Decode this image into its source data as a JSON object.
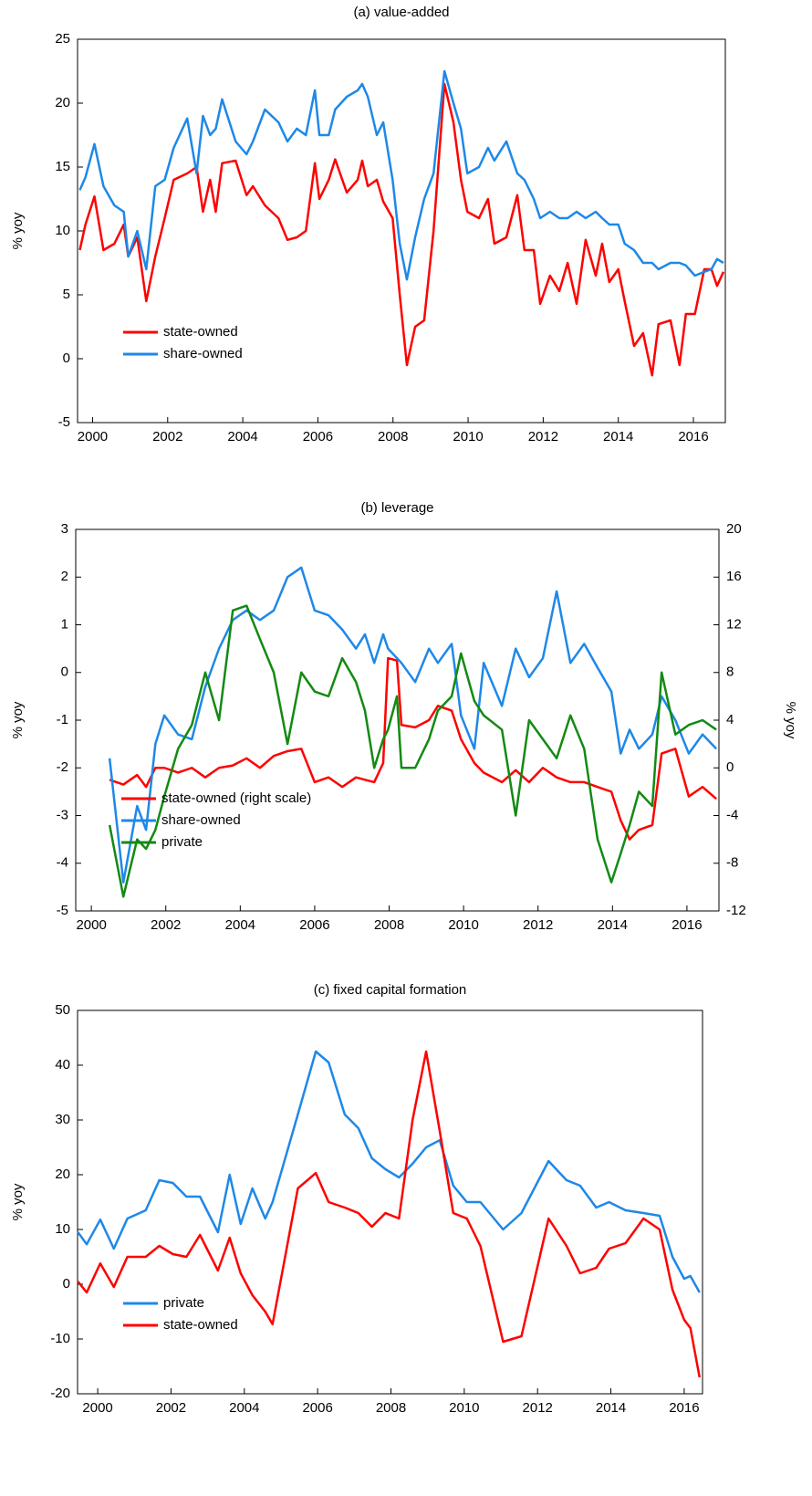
{
  "chart_data": [
    {
      "type": "line",
      "title": "(a) value-added",
      "ylabel": "% yoy",
      "legend": "lower left",
      "xlim": [
        1999.6,
        2016.85
      ],
      "xticks": [
        2000,
        2002,
        2004,
        2006,
        2008,
        2010,
        2012,
        2014,
        2016
      ],
      "ylim": [
        -5,
        25
      ],
      "yticks": [
        -5,
        0,
        5,
        10,
        15,
        20,
        25
      ],
      "x": [
        1999.66,
        1999.81,
        2000.05,
        2000.29,
        2000.58,
        2000.83,
        2000.95,
        2001.19,
        2001.43,
        2001.67,
        2001.92,
        2002.16,
        2002.52,
        2002.77,
        2002.94,
        2003.13,
        2003.28,
        2003.45,
        2003.81,
        2004.1,
        2004.27,
        2004.59,
        2004.95,
        2005.19,
        2005.44,
        2005.68,
        2005.92,
        2006.04,
        2006.29,
        2006.46,
        2006.77,
        2007.06,
        2007.18,
        2007.33,
        2007.57,
        2007.74,
        2007.99,
        2008.18,
        2008.37,
        2008.59,
        2008.83,
        2009.08,
        2009.37,
        2009.61,
        2009.81,
        2009.98,
        2010.29,
        2010.53,
        2010.7,
        2011.02,
        2011.31,
        2011.5,
        2011.75,
        2011.92,
        2012.18,
        2012.43,
        2012.65,
        2012.89,
        2013.13,
        2013.4,
        2013.57,
        2013.76,
        2014.0,
        2014.17,
        2014.42,
        2014.66,
        2014.9,
        2015.07,
        2015.39,
        2015.63,
        2015.8,
        2016.04,
        2016.29,
        2016.48,
        2016.63,
        2016.8
      ],
      "series": [
        {
          "name": "state-owned",
          "color": "#ff0000",
          "values": [
            8.5,
            10.5,
            12.7,
            8.5,
            9,
            10.5,
            8,
            9.5,
            4.5,
            8,
            11,
            14,
            14.5,
            15,
            11.5,
            14,
            11.5,
            15.3,
            15.5,
            12.8,
            13.5,
            12,
            11,
            9.3,
            9.5,
            10,
            15.3,
            12.5,
            14,
            15.6,
            13,
            14,
            15.5,
            13.5,
            14,
            12.3,
            11,
            5,
            -0.5,
            2.5,
            3,
            10,
            21.5,
            18.5,
            14,
            11.5,
            11,
            12.5,
            9,
            9.5,
            12.8,
            8.5,
            8.5,
            4.3,
            6.5,
            5.3,
            7.5,
            4.3,
            9.3,
            6.5,
            9,
            6,
            7,
            4.5,
            1,
            2,
            -1.3,
            2.7,
            3,
            -0.5,
            3.5,
            3.5,
            7,
            7,
            5.7,
            6.8
          ]
        },
        {
          "name": "share-owned",
          "color": "#1e88e8",
          "values": [
            13.2,
            14.2,
            16.8,
            13.5,
            12,
            11.5,
            8,
            10,
            7,
            13.5,
            14,
            16.5,
            18.8,
            14.5,
            19,
            17.5,
            18,
            20.3,
            17,
            16,
            17,
            19.5,
            18.5,
            17,
            18,
            17.5,
            21,
            17.5,
            17.5,
            19.5,
            20.5,
            21,
            21.5,
            20.5,
            17.5,
            18.5,
            14,
            9,
            6.2,
            9.5,
            12.5,
            14.5,
            22.5,
            20,
            18,
            14.5,
            15,
            16.5,
            15.5,
            17,
            14.5,
            14,
            12.5,
            11,
            11.5,
            11,
            11,
            11.5,
            11,
            11.5,
            11,
            10.5,
            10.5,
            9,
            8.5,
            7.5,
            7.5,
            7,
            7.5,
            7.5,
            7.3,
            6.5,
            6.8,
            7,
            7.8,
            7.5
          ]
        }
      ]
    },
    {
      "type": "line",
      "title": "(b) leverage",
      "ylabel": "% yoy",
      "y2label": "% yoy",
      "legend": "lower left",
      "xlim": [
        1999.58,
        2016.86
      ],
      "xticks": [
        2000,
        2002,
        2004,
        2006,
        2008,
        2010,
        2012,
        2014,
        2016
      ],
      "ylim": [
        -5,
        3
      ],
      "yticks": [
        -5,
        -4,
        -3,
        -2,
        -1,
        0,
        1,
        2,
        3
      ],
      "y2lim": [
        -12,
        20
      ],
      "y2ticks": [
        -12,
        -8,
        -4,
        0,
        4,
        8,
        12,
        16,
        20
      ],
      "x": [
        2000.49,
        2000.86,
        2001.23,
        2001.47,
        2001.72,
        2001.96,
        2002.33,
        2002.7,
        2003.06,
        2003.43,
        2003.8,
        2004.17,
        2004.53,
        2004.9,
        2005.27,
        2005.64,
        2006.0,
        2006.37,
        2006.74,
        2007.11,
        2007.35,
        2007.6,
        2007.84,
        2007.97,
        2008.21,
        2008.33,
        2008.7,
        2009.07,
        2009.31,
        2009.68,
        2009.93,
        2010.29,
        2010.54,
        2011.03,
        2011.4,
        2011.76,
        2012.13,
        2012.5,
        2012.87,
        2013.24,
        2013.6,
        2013.97,
        2014.22,
        2014.46,
        2014.71,
        2015.07,
        2015.32,
        2015.69,
        2016.05,
        2016.42,
        2016.79
      ],
      "series": [
        {
          "name": "state-owned (right scale)",
          "color": "#ff0000",
          "axis": "y2",
          "values": [
            -1,
            -1.4,
            -0.6,
            -1.6,
            0,
            0,
            -0.4,
            0,
            -0.8,
            0,
            0.2,
            0.8,
            0,
            1,
            1.4,
            1.6,
            -1.2,
            -0.8,
            -1.6,
            -0.8,
            -1,
            -1.2,
            0.4,
            9.2,
            9,
            3.6,
            3.4,
            4,
            5.2,
            4.8,
            2.4,
            0.4,
            -0.4,
            -1.2,
            -0.2,
            -1.2,
            0,
            -0.8,
            -1.2,
            -1.2,
            -1.6,
            -2,
            -4.4,
            -6,
            -5.2,
            -4.8,
            1.2,
            1.6,
            -2.4,
            -1.6,
            -2.6
          ]
        },
        {
          "name": "share-owned",
          "color": "#1e88e8",
          "values": [
            -1.8,
            -4.4,
            -2.8,
            -3.3,
            -1.5,
            -0.9,
            -1.3,
            -1.4,
            -0.3,
            0.5,
            1.1,
            1.3,
            1.1,
            1.3,
            2.0,
            2.2,
            1.3,
            1.2,
            0.9,
            0.5,
            0.8,
            0.2,
            0.8,
            0.5,
            0.3,
            0.2,
            -0.2,
            0.5,
            0.2,
            0.6,
            -0.9,
            -1.6,
            0.2,
            -0.7,
            0.5,
            -0.1,
            0.3,
            1.7,
            0.2,
            0.6,
            0.1,
            -0.4,
            -1.7,
            -1.2,
            -1.6,
            -1.3,
            -0.5,
            -1.0,
            -1.7,
            -1.3,
            -1.6
          ]
        },
        {
          "name": "private",
          "color": "#138a13",
          "values": [
            -3.2,
            -4.7,
            -3.5,
            -3.7,
            -3.3,
            -2.6,
            -1.6,
            -1.1,
            0,
            -1.0,
            1.3,
            1.4,
            0.7,
            0,
            -1.5,
            0,
            -0.4,
            -0.5,
            0.3,
            -0.2,
            -0.8,
            -2.0,
            -1.4,
            -1.2,
            -0.5,
            -2.0,
            -2.0,
            -1.4,
            -0.8,
            -0.5,
            0.4,
            -0.6,
            -0.9,
            -1.2,
            -3.0,
            -1.0,
            -1.4,
            -1.8,
            -0.9,
            -1.6,
            -3.5,
            -4.4,
            -3.8,
            -3.2,
            -2.5,
            -2.8,
            0,
            -1.3,
            -1.1,
            -1.0,
            -1.2
          ]
        }
      ]
    },
    {
      "type": "line",
      "title": "(c) fixed capital formation",
      "ylabel": "% yoy",
      "legend": "lower left",
      "xlim": [
        1999.45,
        2016.5
      ],
      "xticks": [
        2000,
        2002,
        2004,
        2006,
        2008,
        2010,
        2012,
        2014,
        2016
      ],
      "ylim": [
        -20,
        50
      ],
      "yticks": [
        -20,
        -10,
        0,
        10,
        20,
        30,
        40,
        50
      ],
      "x": [
        1999.46,
        1999.7,
        2000.07,
        2000.44,
        2000.81,
        2001.31,
        2001.68,
        2002.05,
        2002.42,
        2002.79,
        2003.28,
        2003.6,
        2003.9,
        2004.22,
        2004.57,
        2004.77,
        2005.46,
        2005.95,
        2006.3,
        2006.74,
        2007.11,
        2007.48,
        2007.85,
        2008.22,
        2008.59,
        2008.96,
        2009.33,
        2009.7,
        2010.07,
        2010.44,
        2011.06,
        2011.56,
        2012.3,
        2012.79,
        2013.16,
        2013.6,
        2013.95,
        2014.4,
        2014.89,
        2015.33,
        2015.68,
        2016.0,
        2016.17,
        2016.42
      ],
      "series": [
        {
          "name": "private",
          "color": "#1e88e8",
          "values": [
            9.5,
            7.3,
            11.8,
            6.5,
            12,
            13.5,
            19,
            18.5,
            16,
            16,
            9.5,
            20,
            11,
            17.5,
            12,
            15,
            31,
            42.5,
            40.5,
            31,
            28.5,
            23,
            21,
            19.5,
            22,
            25,
            26.3,
            18,
            15,
            15,
            10,
            13,
            22.5,
            19,
            18,
            14,
            15,
            13.5,
            13,
            12.5,
            5,
            1,
            1.5,
            -1.5
          ]
        },
        {
          "name": "state-owned",
          "color": "#ff0000",
          "values": [
            0.5,
            -1.5,
            3.8,
            -0.5,
            5,
            5,
            7,
            5.5,
            5,
            9,
            2.5,
            8.5,
            2,
            -2,
            -5,
            -7.3,
            17.5,
            20.3,
            15,
            14,
            13,
            10.5,
            13,
            12,
            30,
            42.5,
            28,
            13,
            12,
            7,
            -10.5,
            -9.5,
            12,
            7,
            2,
            3,
            6.5,
            7.5,
            12,
            10,
            -1,
            -6.5,
            -8,
            -17
          ]
        }
      ]
    }
  ]
}
